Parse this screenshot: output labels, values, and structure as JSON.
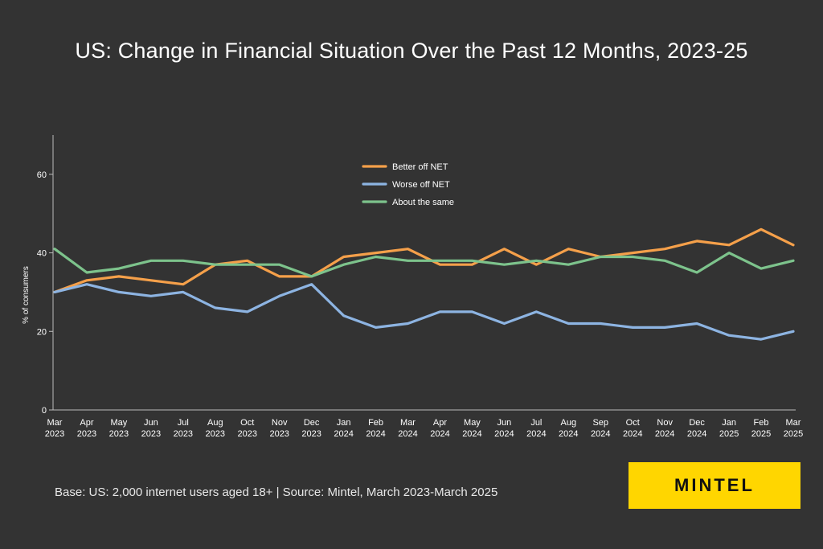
{
  "header": {
    "title": "US: Change in Financial Situation Over the Past 12 Months, 2023-25"
  },
  "footer": {
    "source": "Base: US: 2,000 internet users aged 18+ | Source: Mintel, March 2023-March 2025"
  },
  "brand": {
    "logo_text": "MINTEL",
    "logo_bg": "#ffd600"
  },
  "chart_data": {
    "type": "line",
    "title": "US: Change in Financial Situation Over the Past 12 Months, 2023-25",
    "xlabel": "",
    "ylabel": "% of consumers",
    "ylim": [
      0,
      70
    ],
    "yticks": [
      0,
      20,
      40,
      60
    ],
    "grid": false,
    "legend_position": "top-center",
    "categories": [
      [
        "Mar",
        "2023"
      ],
      [
        "Apr",
        "2023"
      ],
      [
        "May",
        "2023"
      ],
      [
        "Jun",
        "2023"
      ],
      [
        "Jul",
        "2023"
      ],
      [
        "Aug",
        "2023"
      ],
      [
        "Oct",
        "2023"
      ],
      [
        "Nov",
        "2023"
      ],
      [
        "Dec",
        "2023"
      ],
      [
        "Jan",
        "2024"
      ],
      [
        "Feb",
        "2024"
      ],
      [
        "Mar",
        "2024"
      ],
      [
        "Apr",
        "2024"
      ],
      [
        "May",
        "2024"
      ],
      [
        "Jun",
        "2024"
      ],
      [
        "Jul",
        "2024"
      ],
      [
        "Aug",
        "2024"
      ],
      [
        "Sep",
        "2024"
      ],
      [
        "Oct",
        "2024"
      ],
      [
        "Nov",
        "2024"
      ],
      [
        "Dec",
        "2024"
      ],
      [
        "Jan",
        "2025"
      ],
      [
        "Feb",
        "2025"
      ],
      [
        "Mar",
        "2025"
      ]
    ],
    "series": [
      {
        "name": "Better off NET",
        "color": "#f5a04a",
        "values": [
          30,
          33,
          34,
          33,
          32,
          37,
          38,
          34,
          34,
          39,
          40,
          41,
          37,
          37,
          41,
          37,
          41,
          39,
          40,
          41,
          43,
          42,
          46,
          42
        ]
      },
      {
        "name": "Worse off NET",
        "color": "#8db4e2",
        "values": [
          30,
          32,
          30,
          29,
          30,
          26,
          25,
          29,
          32,
          24,
          21,
          22,
          25,
          25,
          22,
          25,
          22,
          22,
          21,
          21,
          22,
          19,
          18,
          20
        ]
      },
      {
        "name": "About the same",
        "color": "#7dc38c",
        "values": [
          41,
          35,
          36,
          38,
          38,
          37,
          37,
          37,
          34,
          37,
          39,
          38,
          38,
          38,
          37,
          38,
          37,
          39,
          39,
          38,
          35,
          40,
          36,
          38
        ]
      }
    ]
  }
}
